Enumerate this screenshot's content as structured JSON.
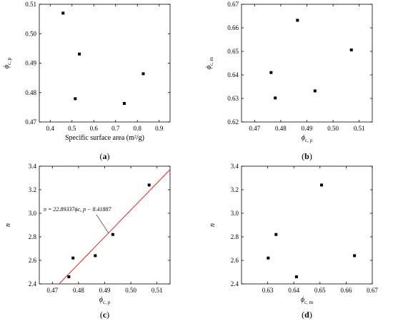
{
  "chart_data": [
    {
      "type": "scatter",
      "xlabel": "Specific surface area (m²/g)",
      "ylabel": "ϕc, p",
      "caption": "(a)",
      "xlim": [
        0.35,
        0.95
      ],
      "ylim": [
        0.47,
        0.51
      ],
      "xticks": [
        0.4,
        0.5,
        0.6,
        0.7,
        0.8,
        0.9
      ],
      "xtick_labels": [
        "0.4",
        "0.5",
        "0.6",
        "0.7",
        "0.8",
        "0.9"
      ],
      "yticks": [
        0.47,
        0.48,
        0.49,
        0.5,
        0.51
      ],
      "ytick_labels": [
        "0.47",
        "0.48",
        "0.49",
        "0.50",
        "0.51"
      ],
      "points": [
        {
          "x": 0.459,
          "y": 0.507
        },
        {
          "x": 0.534,
          "y": 0.4931
        },
        {
          "x": 0.515,
          "y": 0.4779
        },
        {
          "x": 0.74,
          "y": 0.4763
        },
        {
          "x": 0.827,
          "y": 0.4864
        }
      ]
    },
    {
      "type": "scatter",
      "xlabel": "ϕc, p",
      "ylabel": "ϕc, m",
      "caption": "(b)",
      "xlim": [
        0.465,
        0.515
      ],
      "ylim": [
        0.62,
        0.67
      ],
      "xticks": [
        0.47,
        0.48,
        0.49,
        0.5,
        0.51
      ],
      "xtick_labels": [
        "0.47",
        "0.48",
        "0.49",
        "0.50",
        "0.51"
      ],
      "yticks": [
        0.62,
        0.63,
        0.64,
        0.65,
        0.66,
        0.67
      ],
      "ytick_labels": [
        "0.62",
        "0.63",
        "0.64",
        "0.65",
        "0.66",
        "0.67"
      ],
      "points": [
        {
          "x": 0.4763,
          "y": 0.641
        },
        {
          "x": 0.4779,
          "y": 0.6302
        },
        {
          "x": 0.4864,
          "y": 0.6632
        },
        {
          "x": 0.4931,
          "y": 0.6332
        },
        {
          "x": 0.507,
          "y": 0.6506
        }
      ]
    },
    {
      "type": "scatter",
      "xlabel": "ϕc, p",
      "ylabel": "n",
      "caption": "(c)",
      "xlim": [
        0.465,
        0.515
      ],
      "ylim": [
        2.4,
        3.4
      ],
      "xticks": [
        0.47,
        0.48,
        0.49,
        0.5,
        0.51
      ],
      "xtick_labels": [
        "0.47",
        "0.48",
        "0.49",
        "0.50",
        "0.51"
      ],
      "yticks": [
        2.4,
        2.6,
        2.8,
        3.0,
        3.2,
        3.4
      ],
      "ytick_labels": [
        "2.4",
        "2.6",
        "2.8",
        "3.0",
        "3.2",
        "3.4"
      ],
      "points": [
        {
          "x": 0.4763,
          "y": 2.46
        },
        {
          "x": 0.4779,
          "y": 2.62
        },
        {
          "x": 0.4864,
          "y": 2.64
        },
        {
          "x": 0.4931,
          "y": 2.82
        },
        {
          "x": 0.507,
          "y": 3.24
        }
      ],
      "fit_line": {
        "slope": 22.89337,
        "intercept": -8.41887,
        "color": "#e8211d"
      },
      "annotation": "n = 22.89337ϕc, p − 8.41887"
    },
    {
      "type": "scatter",
      "xlabel": "ϕc, m",
      "ylabel": "n",
      "caption": "(d)",
      "xlim": [
        0.62,
        0.67
      ],
      "ylim": [
        2.4,
        3.4
      ],
      "xticks": [
        0.63,
        0.64,
        0.65,
        0.66,
        0.67
      ],
      "xtick_labels": [
        "0.63",
        "0.64",
        "0.65",
        "0.66",
        "0.67"
      ],
      "yticks": [
        2.4,
        2.6,
        2.8,
        3.0,
        3.2,
        3.4
      ],
      "ytick_labels": [
        "2.4",
        "2.6",
        "2.8",
        "3.0",
        "3.2",
        "3.4"
      ],
      "points": [
        {
          "x": 0.641,
          "y": 2.46
        },
        {
          "x": 0.6302,
          "y": 2.62
        },
        {
          "x": 0.6632,
          "y": 2.64
        },
        {
          "x": 0.6332,
          "y": 2.82
        },
        {
          "x": 0.6506,
          "y": 3.24
        }
      ]
    }
  ]
}
